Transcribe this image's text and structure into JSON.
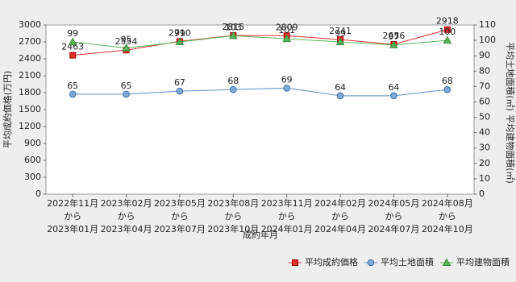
{
  "chart_data": {
    "type": "line",
    "xlabel": "成約年月",
    "ylabel": "平均成約価格(万円)",
    "y2label": [
      "平均土地面積(㎡)",
      "平均建物面積(㎡)"
    ],
    "categories": [
      [
        "2022年11月",
        "から",
        "2023年01月"
      ],
      [
        "2023年02月",
        "から",
        "2023年04月"
      ],
      [
        "2023年05月",
        "から",
        "2023年07月"
      ],
      [
        "2023年08月",
        "から",
        "2023年10月"
      ],
      [
        "2023年11月",
        "から",
        "2024年01月"
      ],
      [
        "2024年02月",
        "から",
        "2024年04月"
      ],
      [
        "2024年05月",
        "から",
        "2024年07月"
      ],
      [
        "2024年08月",
        "から",
        "2024年10月"
      ]
    ],
    "series": [
      {
        "name": "平均成約価格",
        "color": "#e03030",
        "marker": "square",
        "values": [
          2463,
          2554,
          2710,
          2815,
          2809,
          2741,
          2656,
          2918
        ]
      },
      {
        "name": "平均土地面積",
        "color": "#5b8fc9",
        "marker": "circle",
        "axis": "y2",
        "values": [
          65,
          65,
          67,
          68,
          69,
          64,
          64,
          68
        ]
      },
      {
        "name": "平均建物面積",
        "color": "#55b555",
        "marker": "triangle",
        "axis": "y2",
        "values": [
          99,
          95,
          99,
          103,
          101,
          99,
          97,
          100
        ]
      }
    ],
    "ylim": [
      0,
      3000
    ],
    "yticks": [
      0,
      300,
      600,
      900,
      1200,
      1500,
      1800,
      2100,
      2400,
      2700,
      3000
    ],
    "y2lim": [
      0,
      110
    ],
    "y2ticks": [
      0,
      10,
      20,
      30,
      40,
      50,
      60,
      70,
      80,
      90,
      100,
      110
    ],
    "grid": false,
    "legend": "bottom-right"
  }
}
